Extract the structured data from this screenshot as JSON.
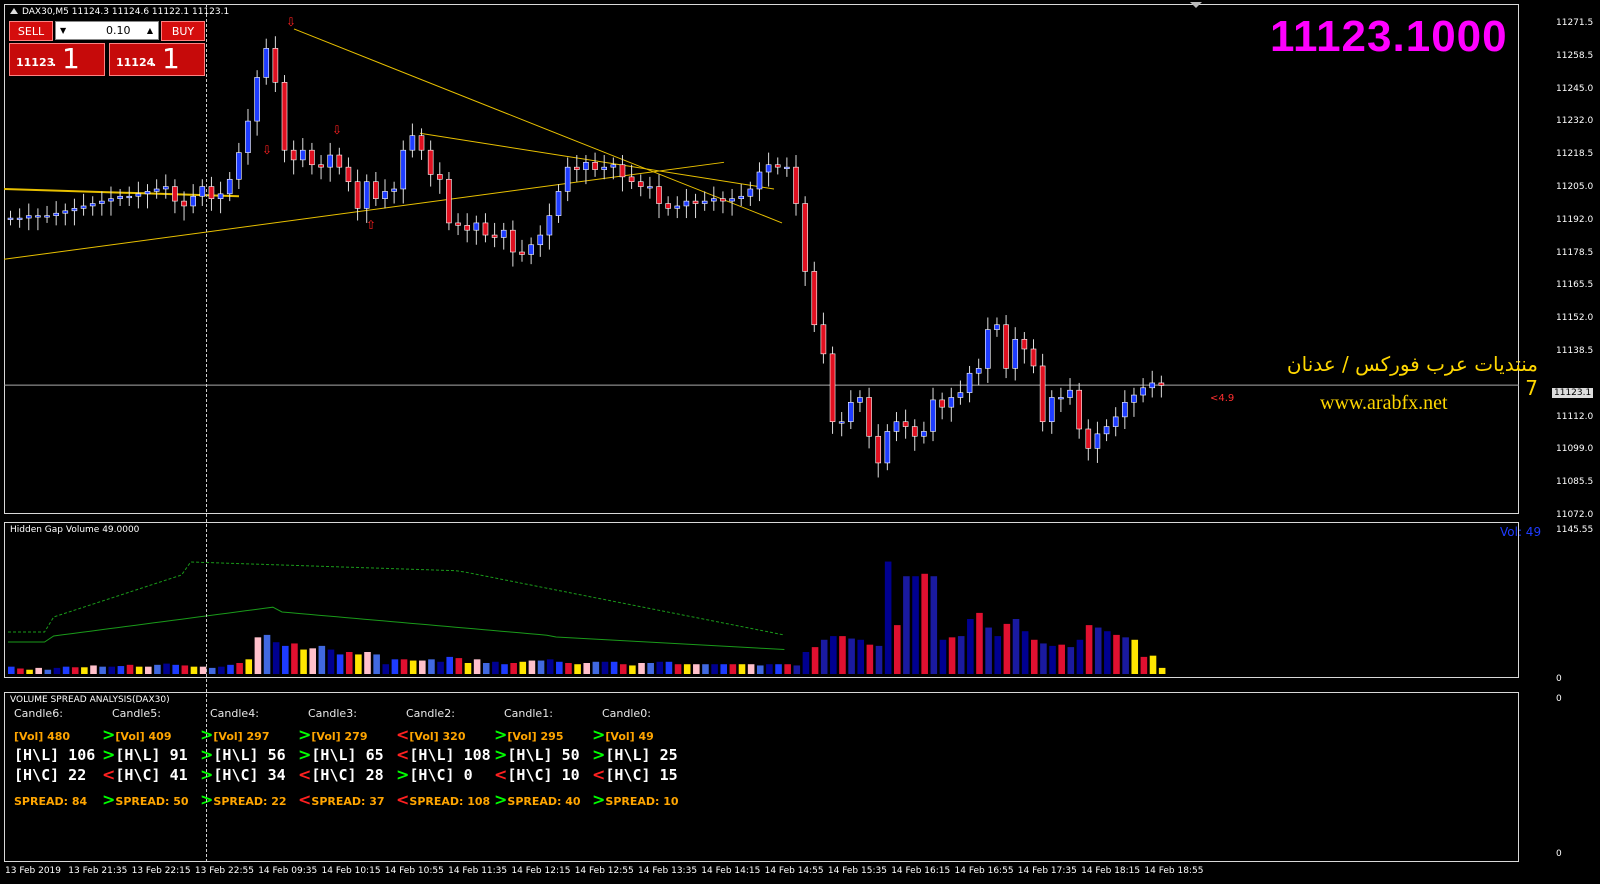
{
  "window": {
    "symbol_header": "DAX30,M5  11124.3 11124.6 11122.1 11123.1",
    "big_price": "11123.1000",
    "current_price_tag": "11123.1",
    "spread_marker": "<4.9",
    "overlay_arabic": "منتديات عرب فوركس / عدنان 7",
    "overlay_url": "www.arabfx.net"
  },
  "trade_panel": {
    "sell_label": "SELL",
    "buy_label": "BUY",
    "lot_value": "0.10",
    "sell_small": "11123",
    "sell_big": "1",
    "buy_small": "11124",
    "buy_big": "1",
    "dot": "."
  },
  "price_axis": [
    "11271.5",
    "11258.5",
    "11245.0",
    "11232.0",
    "11218.5",
    "11205.0",
    "11192.0",
    "11178.5",
    "11165.5",
    "11152.0",
    "11138.5",
    "11112.0",
    "11099.0",
    "11085.5",
    "11072.0"
  ],
  "volume_panel": {
    "title": "Hidden Gap Volume 49.0000",
    "vol_label": "Vol: 49",
    "axis_top": "1145.55",
    "axis_zero": "0"
  },
  "vsa_panel": {
    "title": "VOLUME SPREAD ANALYSIS(DAX30)",
    "axis_top": "0",
    "axis_zero": "0",
    "columns": [
      {
        "head": "Candle6:",
        "vol_arrow": "",
        "vol": "[Vol] 480",
        "hl_arrow": "",
        "hl": "[H\\L] 106",
        "hc_arrow": "",
        "hc": "[H\\C] 22",
        "sp_arrow": "",
        "spread": "SPREAD: 84"
      },
      {
        "head": "Candle5:",
        "vol_arrow": ">",
        "vol": "[Vol] 409",
        "hl_arrow": ">",
        "hl": "[H\\L] 91",
        "hc_arrow": "<",
        "hc": "[H\\C] 41",
        "sp_arrow": ">",
        "spread": "SPREAD: 50"
      },
      {
        "head": "Candle4:",
        "vol_arrow": ">",
        "vol": "[Vol] 297",
        "hl_arrow": ">",
        "hl": "[H\\L] 56",
        "hc_arrow": ">",
        "hc": "[H\\C] 34",
        "sp_arrow": ">",
        "spread": "SPREAD: 22"
      },
      {
        "head": "Candle3:",
        "vol_arrow": ">",
        "vol": "[Vol] 279",
        "hl_arrow": ">",
        "hl": "[H\\L] 65",
        "hc_arrow": "<",
        "hc": "[H\\C] 28",
        "sp_arrow": "<",
        "spread": "SPREAD: 37"
      },
      {
        "head": "Candle2:",
        "vol_arrow": "<",
        "vol": "[Vol] 320",
        "hl_arrow": "<",
        "hl": "[H\\L] 108",
        "hc_arrow": ">",
        "hc": "[H\\C] 0",
        "sp_arrow": "<",
        "spread": "SPREAD: 108"
      },
      {
        "head": "Candle1:",
        "vol_arrow": ">",
        "vol": "[Vol] 295",
        "hl_arrow": ">",
        "hl": "[H\\L] 50",
        "hc_arrow": "<",
        "hc": "[H\\C] 10",
        "sp_arrow": ">",
        "spread": "SPREAD: 40"
      },
      {
        "head": "Candle0:",
        "vol_arrow": ">",
        "vol": "[Vol] 49",
        "hl_arrow": ">",
        "hl": "[H\\L] 25",
        "hc_arrow": "<",
        "hc": "[H\\C] 15",
        "sp_arrow": ">",
        "spread": "SPREAD: 10"
      }
    ]
  },
  "time_axis": [
    "13 Feb 2019",
    "13 Feb 21:35",
    "13 Feb 22:15",
    "13 Feb 22:55",
    "14 Feb 09:35",
    "14 Feb 10:15",
    "14 Feb 10:55",
    "14 Feb 11:35",
    "14 Feb 12:15",
    "14 Feb 12:55",
    "14 Feb 13:35",
    "14 Feb 14:15",
    "14 Feb 14:55",
    "14 Feb 15:35",
    "14 Feb 16:15",
    "14 Feb 16:55",
    "14 Feb 17:35",
    "14 Feb 18:15",
    "14 Feb 18:55"
  ],
  "chart_data": {
    "type": "candlestick",
    "closes": [
      11192,
      11192,
      11193,
      11193,
      11193,
      11194,
      11195,
      11196,
      11197,
      11198,
      11199,
      11200,
      11201,
      11201,
      11202,
      11203,
      11204,
      11205,
      11199,
      11197,
      11201,
      11205,
      11200,
      11202,
      11208,
      11219,
      11232,
      11250,
      11262,
      11248,
      11220,
      11216,
      11220,
      11214,
      11213,
      11218,
      11213,
      11207,
      11196,
      11207,
      11200,
      11203,
      11204,
      11220,
      11226,
      11220,
      11210,
      11208,
      11190,
      11189,
      11187,
      11190,
      11185,
      11184,
      11187,
      11178,
      11177,
      11181,
      11185,
      11193,
      11203,
      11213,
      11212,
      11215,
      11212,
      11213,
      11214,
      11209,
      11207,
      11205,
      11205,
      11198,
      11196,
      11197,
      11199,
      11198,
      11199,
      11200,
      11199,
      11200,
      11201,
      11204,
      11211,
      11214,
      11213,
      11213,
      11198,
      11170,
      11148,
      11136,
      11108,
      11108,
      11116,
      11118,
      11102,
      11091,
      11104,
      11108,
      11106,
      11102,
      11104,
      11117,
      11114,
      11118,
      11120,
      11128,
      11130,
      11146,
      11148,
      11130,
      11142,
      11138,
      11131,
      11108,
      11118,
      11118,
      11121,
      11105,
      11097,
      11103,
      11106,
      11110,
      11116,
      11119,
      11122,
      11124,
      11123
    ],
    "volumes": [
      60,
      45,
      35,
      50,
      35,
      50,
      60,
      55,
      55,
      70,
      60,
      60,
      65,
      75,
      60,
      60,
      75,
      85,
      75,
      70,
      60,
      60,
      50,
      60,
      75,
      90,
      120,
      300,
      320,
      260,
      230,
      250,
      200,
      210,
      230,
      200,
      160,
      180,
      160,
      180,
      160,
      80,
      120,
      120,
      110,
      110,
      120,
      100,
      140,
      130,
      90,
      120,
      90,
      100,
      80,
      90,
      100,
      110,
      110,
      120,
      100,
      90,
      80,
      90,
      100,
      100,
      100,
      80,
      70,
      90,
      90,
      100,
      100,
      80,
      80,
      80,
      80,
      80,
      80,
      80,
      80,
      80,
      70,
      80,
      80,
      80,
      70,
      180,
      220,
      280,
      310,
      310,
      290,
      280,
      240,
      230,
      920,
      400,
      800,
      800,
      820,
      800,
      280,
      300,
      310,
      450,
      500,
      380,
      310,
      410,
      450,
      350,
      280,
      250,
      230,
      240,
      220,
      280,
      400,
      380,
      350,
      320,
      300,
      280,
      140,
      150,
      50
    ],
    "volume_scale_max": 1145.55,
    "price_range": [
      11072.0,
      11277.0
    ],
    "horizontal_line": 11123.1
  }
}
